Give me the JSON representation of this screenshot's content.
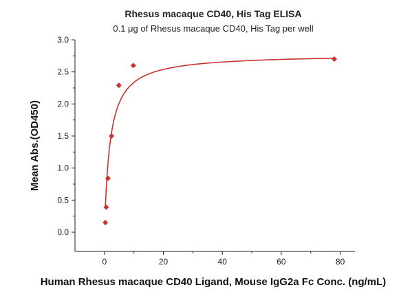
{
  "chart_data": {
    "type": "scatter",
    "title": "Rhesus macaque CD40, His Tag ELISA",
    "subtitle": "0.1 μg of Rhesus macaque CD40, His Tag per well",
    "xlabel": "Human Rhesus macaque CD40 Ligand, Mouse IgG2a Fc Conc. (ng/mL)",
    "ylabel": "Mean Abs.(OD450)",
    "xlim": [
      -10,
      85
    ],
    "ylim": [
      -0.3,
      3.0
    ],
    "x_ticks": [
      0,
      20,
      40,
      60,
      80
    ],
    "y_ticks": [
      0.0,
      0.5,
      1.0,
      1.5,
      2.0,
      2.5,
      3.0
    ],
    "x_tick_labels": [
      "0",
      "20",
      "40",
      "60",
      "80"
    ],
    "y_tick_labels": [
      "0.0",
      "0.5",
      "1.0",
      "1.5",
      "2.0",
      "2.5",
      "3.0"
    ],
    "grid": false,
    "colors": {
      "series": "#c8312f",
      "axis": "#222222"
    },
    "series": [
      {
        "points": [
          {
            "x": 0.3,
            "y": 0.15
          },
          {
            "x": 0.6,
            "y": 0.39
          },
          {
            "x": 1.2,
            "y": 0.84
          },
          {
            "x": 2.4,
            "y": 1.5
          },
          {
            "x": 4.9,
            "y": 2.29
          },
          {
            "x": 9.8,
            "y": 2.6
          },
          {
            "x": 78.0,
            "y": 2.7
          }
        ],
        "fit": {
          "model": "4PL",
          "bottom": 0.0,
          "top": 2.78,
          "ec50": 1.9,
          "hill": 1.0
        }
      }
    ]
  }
}
